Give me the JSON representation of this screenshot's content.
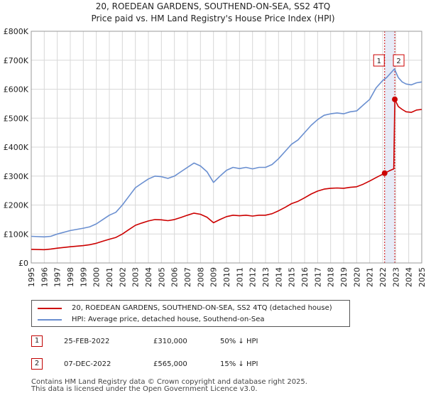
{
  "chart_data": {
    "type": "line",
    "title": "20, ROEDEAN GARDENS, SOUTHEND-ON-SEA, SS2 4TQ",
    "subtitle": "Price paid vs. HM Land Registry's House Price Index (HPI)",
    "xlim": [
      1995,
      2025
    ],
    "ylim": [
      0,
      800000
    ],
    "x_ticks": [
      "1995",
      "1996",
      "1997",
      "1998",
      "1999",
      "2000",
      "2001",
      "2002",
      "2003",
      "2004",
      "2005",
      "2006",
      "2007",
      "2008",
      "2009",
      "2010",
      "2011",
      "2012",
      "2013",
      "2014",
      "2015",
      "2016",
      "2017",
      "2018",
      "2019",
      "2020",
      "2021",
      "2022",
      "2023",
      "2024",
      "2025"
    ],
    "y_ticks": [
      {
        "value": 0,
        "label": "£0"
      },
      {
        "value": 100000,
        "label": "£100K"
      },
      {
        "value": 200000,
        "label": "£200K"
      },
      {
        "value": 300000,
        "label": "£300K"
      },
      {
        "value": 400000,
        "label": "£400K"
      },
      {
        "value": 500000,
        "label": "£500K"
      },
      {
        "value": 600000,
        "label": "£600K"
      },
      {
        "value": 700000,
        "label": "£700K"
      },
      {
        "value": 800000,
        "label": "£800K"
      }
    ],
    "highlight_span": [
      2022.15,
      2022.93
    ],
    "series": [
      {
        "name": "HPI: Average price, detached house, Southend-on-Sea",
        "color": "#6a8fd0",
        "points": [
          [
            1995,
            92000
          ],
          [
            1996,
            90000
          ],
          [
            1996.5,
            92000
          ],
          [
            1997,
            100000
          ],
          [
            1998,
            112000
          ],
          [
            1999,
            120000
          ],
          [
            1999.5,
            125000
          ],
          [
            2000,
            135000
          ],
          [
            2000.5,
            150000
          ],
          [
            2001,
            165000
          ],
          [
            2001.5,
            175000
          ],
          [
            2002,
            200000
          ],
          [
            2002.5,
            230000
          ],
          [
            2003,
            260000
          ],
          [
            2003.5,
            275000
          ],
          [
            2004,
            290000
          ],
          [
            2004.5,
            300000
          ],
          [
            2005,
            298000
          ],
          [
            2005.5,
            292000
          ],
          [
            2006,
            300000
          ],
          [
            2006.5,
            315000
          ],
          [
            2007,
            330000
          ],
          [
            2007.5,
            345000
          ],
          [
            2008,
            335000
          ],
          [
            2008.5,
            315000
          ],
          [
            2009,
            278000
          ],
          [
            2009.5,
            300000
          ],
          [
            2010,
            320000
          ],
          [
            2010.5,
            330000
          ],
          [
            2011,
            326000
          ],
          [
            2011.5,
            330000
          ],
          [
            2012,
            325000
          ],
          [
            2012.5,
            330000
          ],
          [
            2013,
            330000
          ],
          [
            2013.5,
            340000
          ],
          [
            2014,
            360000
          ],
          [
            2014.5,
            385000
          ],
          [
            2015,
            410000
          ],
          [
            2015.5,
            425000
          ],
          [
            2016,
            450000
          ],
          [
            2016.5,
            475000
          ],
          [
            2017,
            495000
          ],
          [
            2017.5,
            510000
          ],
          [
            2018,
            515000
          ],
          [
            2018.5,
            518000
          ],
          [
            2019,
            515000
          ],
          [
            2019.5,
            522000
          ],
          [
            2020,
            525000
          ],
          [
            2020.5,
            545000
          ],
          [
            2021,
            565000
          ],
          [
            2021.5,
            605000
          ],
          [
            2022,
            630000
          ],
          [
            2022.3,
            640000
          ],
          [
            2022.6,
            655000
          ],
          [
            2022.9,
            670000
          ],
          [
            2023.2,
            640000
          ],
          [
            2023.5,
            625000
          ],
          [
            2023.8,
            618000
          ],
          [
            2024.2,
            615000
          ],
          [
            2024.6,
            622000
          ],
          [
            2025,
            625000
          ]
        ]
      },
      {
        "name": "20, ROEDEAN GARDENS, SOUTHEND-ON-SEA, SS2 4TQ (detached house)",
        "color": "#cc0000",
        "points": [
          [
            1995,
            47000
          ],
          [
            1996,
            46000
          ],
          [
            1996.5,
            48000
          ],
          [
            1997,
            51000
          ],
          [
            1998,
            56000
          ],
          [
            1999,
            60000
          ],
          [
            1999.5,
            63000
          ],
          [
            2000,
            68000
          ],
          [
            2000.5,
            75000
          ],
          [
            2001,
            82000
          ],
          [
            2001.5,
            88000
          ],
          [
            2002,
            100000
          ],
          [
            2002.5,
            115000
          ],
          [
            2003,
            130000
          ],
          [
            2003.5,
            138000
          ],
          [
            2004,
            145000
          ],
          [
            2004.5,
            150000
          ],
          [
            2005,
            149000
          ],
          [
            2005.5,
            146000
          ],
          [
            2006,
            150000
          ],
          [
            2006.5,
            157000
          ],
          [
            2007,
            165000
          ],
          [
            2007.5,
            172000
          ],
          [
            2008,
            168000
          ],
          [
            2008.5,
            158000
          ],
          [
            2009,
            139000
          ],
          [
            2009.5,
            150000
          ],
          [
            2010,
            160000
          ],
          [
            2010.5,
            165000
          ],
          [
            2011,
            163000
          ],
          [
            2011.5,
            165000
          ],
          [
            2012,
            162000
          ],
          [
            2012.5,
            165000
          ],
          [
            2013,
            165000
          ],
          [
            2013.5,
            170000
          ],
          [
            2014,
            180000
          ],
          [
            2014.5,
            192000
          ],
          [
            2015,
            205000
          ],
          [
            2015.5,
            213000
          ],
          [
            2016,
            225000
          ],
          [
            2016.5,
            238000
          ],
          [
            2017,
            248000
          ],
          [
            2017.5,
            255000
          ],
          [
            2018,
            258000
          ],
          [
            2018.5,
            259000
          ],
          [
            2019,
            258000
          ],
          [
            2019.5,
            261000
          ],
          [
            2020,
            263000
          ],
          [
            2020.5,
            272000
          ],
          [
            2021,
            283000
          ],
          [
            2021.5,
            295000
          ],
          [
            2022.15,
            310000
          ],
          [
            2022.5,
            318000
          ],
          [
            2022.85,
            325000
          ],
          [
            2022.93,
            565000
          ],
          [
            2023.2,
            540000
          ],
          [
            2023.5,
            530000
          ],
          [
            2023.8,
            522000
          ],
          [
            2024.2,
            520000
          ],
          [
            2024.6,
            528000
          ],
          [
            2025,
            530000
          ]
        ]
      }
    ],
    "sales": [
      {
        "marker": "1",
        "x": 2022.15,
        "price": 310000
      },
      {
        "marker": "2",
        "x": 2022.93,
        "price": 565000
      }
    ]
  },
  "legend": {
    "property_label": "20, ROEDEAN GARDENS, SOUTHEND-ON-SEA, SS2 4TQ (detached house)",
    "hpi_label": "HPI: Average price, detached house, Southend-on-Sea"
  },
  "sales_table": [
    {
      "num": "1",
      "date": "25-FEB-2022",
      "price": "£310,000",
      "hpi": "50% ↓ HPI"
    },
    {
      "num": "2",
      "date": "07-DEC-2022",
      "price": "£565,000",
      "hpi": "15% ↓ HPI"
    }
  ],
  "footer": {
    "line1": "Contains HM Land Registry data © Crown copyright and database right 2025.",
    "line2": "This data is licensed under the Open Government Licence v3.0."
  }
}
